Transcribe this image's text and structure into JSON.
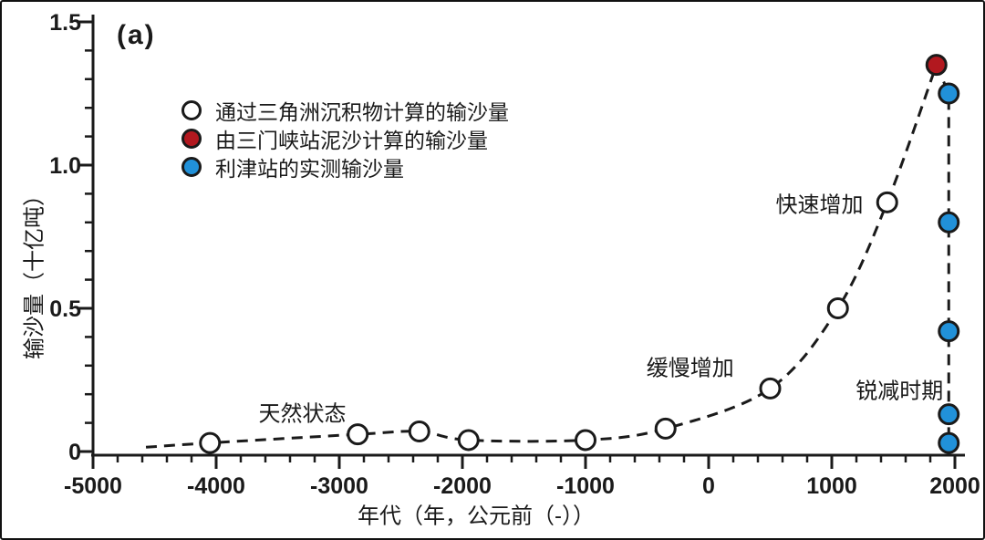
{
  "figure": {
    "panel_label": "(a)",
    "background_color": "#ffffff",
    "border_color": "#111111",
    "axis_color": "#1a1a1a"
  },
  "chart_data": {
    "type": "scatter",
    "title": "",
    "xlabel": "年代（年，公元前（-））",
    "ylabel": "输沙量（十亿吨）",
    "xlim": [
      -5000,
      2000
    ],
    "ylim": [
      0,
      1.5
    ],
    "x_major_ticks": [
      -5000,
      -4000,
      -3000,
      -2000,
      -1000,
      0,
      1000,
      2000
    ],
    "x_minor_step": 200,
    "y_major_ticks": [
      0,
      0.5,
      1.0,
      1.5
    ],
    "y_minor_step": 0.1,
    "grid": false,
    "line_style": "dashed",
    "legend_position": "upper-left-inside",
    "series": [
      {
        "name": "通过三角洲沉积物计算的输沙量",
        "marker": "open-circle",
        "fill": "#ffffff",
        "points": [
          [
            -4050,
            0.03
          ],
          [
            -2850,
            0.06
          ],
          [
            -2350,
            0.07
          ],
          [
            -1950,
            0.04
          ],
          [
            -1000,
            0.04
          ],
          [
            -350,
            0.08
          ],
          [
            500,
            0.22
          ],
          [
            1050,
            0.5
          ],
          [
            1450,
            0.87
          ]
        ]
      },
      {
        "name": "由三门峡站泥沙计算的输沙量",
        "marker": "filled-circle",
        "fill": "#b2181f",
        "points": [
          [
            1850,
            1.35
          ]
        ]
      },
      {
        "name": "利津站的实测输沙量",
        "marker": "filled-circle",
        "fill": "#2191d9",
        "points": [
          [
            1950,
            1.25
          ],
          [
            1950,
            0.8
          ],
          [
            1950,
            0.42
          ],
          [
            1950,
            0.13
          ],
          [
            1950,
            0.03
          ]
        ]
      }
    ],
    "curve_start_point": [
      -4570,
      0.015
    ],
    "annotations": [
      {
        "text": "天然状态",
        "x": -3300,
        "y": 0.14
      },
      {
        "text": "缓慢增加",
        "x": -150,
        "y": 0.3
      },
      {
        "text": "快速增加",
        "x": 900,
        "y": 0.87
      },
      {
        "text": "锐减时期",
        "x": 1550,
        "y": 0.22
      }
    ]
  }
}
